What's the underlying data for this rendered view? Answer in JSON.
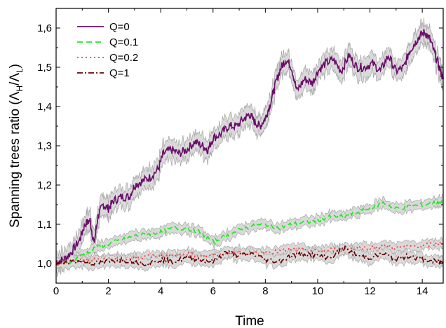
{
  "chart_data": {
    "type": "line",
    "title": "",
    "xlabel": "Time",
    "ylabel": "Spanning trees ratio (Λ",
    "ylabel_sub1": "H",
    "ylabel_mid": "/Λ",
    "ylabel_sub2": "L",
    "ylabel_end": ")",
    "xlim": [
      0,
      14.8
    ],
    "ylim": [
      0.95,
      1.65
    ],
    "x_ticks": [
      0,
      2,
      4,
      6,
      8,
      10,
      12,
      14
    ],
    "x_tick_labels": [
      "0",
      "2",
      "4",
      "6",
      "8",
      "10",
      "12",
      "14"
    ],
    "y_ticks": [
      1.0,
      1.1,
      1.2,
      1.3,
      1.4,
      1.5,
      1.6
    ],
    "y_tick_labels": [
      "1,0",
      "1,1",
      "1,2",
      "1,3",
      "1,4",
      "1,5",
      "1,6"
    ],
    "grid": false,
    "legend_position": "top-left",
    "band_color": "#d9d9d9",
    "band_edge_color": "#a6a6a6",
    "series": [
      {
        "name": "Q=0",
        "color": "#6b0f6b",
        "dash": "solid",
        "band": 0.025,
        "x": [
          0,
          0.3,
          0.6,
          0.9,
          1.1,
          1.3,
          1.45,
          1.6,
          1.8,
          2.0,
          2.2,
          2.5,
          2.8,
          3.0,
          3.3,
          3.6,
          3.9,
          4.1,
          4.4,
          4.7,
          5.0,
          5.3,
          5.6,
          5.8,
          6.0,
          6.3,
          6.6,
          6.9,
          7.2,
          7.4,
          7.6,
          7.8,
          8.0,
          8.2,
          8.4,
          8.6,
          8.8,
          9.0,
          9.2,
          9.5,
          9.8,
          10.0,
          10.3,
          10.6,
          10.9,
          11.2,
          11.5,
          11.8,
          12.1,
          12.4,
          12.7,
          13.0,
          13.3,
          13.5,
          13.7,
          13.9,
          14.1,
          14.3,
          14.5,
          14.7,
          14.8
        ],
        "y": [
          1.005,
          1.01,
          1.03,
          1.06,
          1.1,
          1.11,
          1.05,
          1.12,
          1.15,
          1.14,
          1.16,
          1.17,
          1.17,
          1.2,
          1.21,
          1.22,
          1.24,
          1.28,
          1.29,
          1.28,
          1.29,
          1.31,
          1.3,
          1.29,
          1.32,
          1.33,
          1.35,
          1.35,
          1.37,
          1.38,
          1.36,
          1.35,
          1.37,
          1.41,
          1.46,
          1.5,
          1.52,
          1.5,
          1.44,
          1.47,
          1.46,
          1.49,
          1.51,
          1.52,
          1.49,
          1.53,
          1.5,
          1.5,
          1.51,
          1.49,
          1.53,
          1.49,
          1.5,
          1.54,
          1.56,
          1.58,
          1.59,
          1.57,
          1.53,
          1.49,
          1.47
        ]
      },
      {
        "name": "Q=0.1",
        "color": "#22e822",
        "dash": "8,5",
        "band": 0.012,
        "x": [
          0,
          0.5,
          1.0,
          1.5,
          2.0,
          2.5,
          3.0,
          3.5,
          4.0,
          4.5,
          5.0,
          5.5,
          6.0,
          6.5,
          7.0,
          7.5,
          8.0,
          8.5,
          9.0,
          9.5,
          10.0,
          10.5,
          11.0,
          11.5,
          12.0,
          12.5,
          13.0,
          13.5,
          14.0,
          14.5,
          14.8
        ],
        "y": [
          1.0,
          1.005,
          1.02,
          1.04,
          1.05,
          1.06,
          1.07,
          1.075,
          1.08,
          1.09,
          1.09,
          1.08,
          1.055,
          1.07,
          1.085,
          1.095,
          1.1,
          1.09,
          1.1,
          1.105,
          1.11,
          1.12,
          1.12,
          1.13,
          1.14,
          1.155,
          1.14,
          1.145,
          1.15,
          1.155,
          1.16
        ]
      },
      {
        "name": "Q=0.2",
        "color": "#ff3b3b",
        "dash": "2,4",
        "band": 0.012,
        "x": [
          0,
          0.5,
          1.0,
          1.5,
          2.0,
          2.5,
          3.0,
          3.5,
          4.0,
          4.5,
          5.0,
          5.5,
          6.0,
          6.5,
          7.0,
          7.5,
          8.0,
          8.5,
          9.0,
          9.5,
          10.0,
          10.5,
          11.0,
          11.5,
          12.0,
          12.5,
          13.0,
          13.5,
          14.0,
          14.5,
          14.8
        ],
        "y": [
          1.0,
          1.005,
          1.01,
          1.01,
          1.012,
          1.01,
          1.015,
          1.02,
          1.02,
          1.02,
          1.025,
          1.02,
          1.02,
          1.025,
          1.03,
          1.025,
          1.03,
          1.03,
          1.035,
          1.035,
          1.03,
          1.035,
          1.035,
          1.04,
          1.04,
          1.045,
          1.04,
          1.045,
          1.045,
          1.05,
          1.05
        ]
      },
      {
        "name": "Q=1",
        "color": "#6b0000",
        "dash": "8,3,2,3",
        "band": 0.014,
        "x": [
          0,
          0.5,
          1.0,
          1.5,
          2.0,
          2.5,
          3.0,
          3.5,
          4.0,
          4.5,
          5.0,
          5.5,
          6.0,
          6.5,
          7.0,
          7.5,
          8.0,
          8.5,
          9.0,
          9.5,
          10.0,
          10.5,
          11.0,
          11.5,
          12.0,
          12.5,
          13.0,
          13.5,
          14.0,
          14.5,
          14.8
        ],
        "y": [
          1.0,
          1.005,
          1.005,
          1.0,
          1.005,
          1.01,
          1.005,
          1.0,
          1.01,
          1.005,
          1.015,
          1.01,
          1.005,
          1.03,
          1.02,
          1.025,
          1.01,
          1.005,
          1.02,
          1.025,
          1.02,
          1.015,
          1.04,
          1.02,
          1.015,
          1.025,
          1.01,
          1.02,
          1.01,
          1.005,
          1.005
        ]
      }
    ]
  }
}
